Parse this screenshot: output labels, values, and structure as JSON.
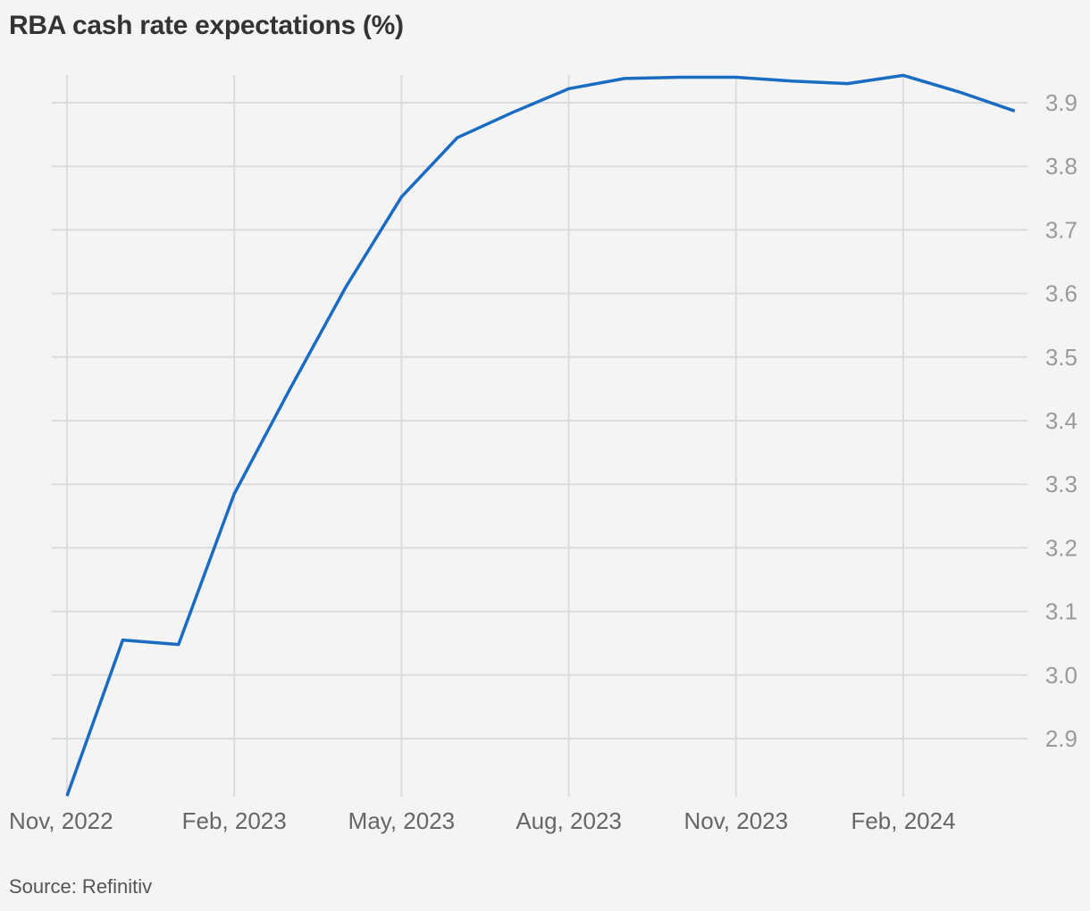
{
  "chart_data": {
    "type": "line",
    "title": "RBA cash rate expectations (%)",
    "source": "Source: Refinitiv",
    "xlabel": "",
    "ylabel": "",
    "ylim": [
      2.82,
      3.96
    ],
    "y_ticks": [
      2.9,
      3.0,
      3.1,
      3.2,
      3.3,
      3.4,
      3.5,
      3.6,
      3.7,
      3.8,
      3.9
    ],
    "y_tick_labels": [
      "2.9",
      "3.0",
      "3.1",
      "3.2",
      "3.3",
      "3.4",
      "3.5",
      "3.6",
      "3.7",
      "3.8",
      "3.9"
    ],
    "x_range": [
      "2022-11",
      "2024-04"
    ],
    "x_ticks": [
      "2022-11",
      "2023-02",
      "2023-05",
      "2023-08",
      "2023-11",
      "2024-02"
    ],
    "x_tick_labels": [
      "Nov, 2022",
      "Feb, 2023",
      "May, 2023",
      "Aug, 2023",
      "Nov, 2023",
      "Feb, 2024"
    ],
    "y_axis_side": "right",
    "grid": true,
    "legend": "none",
    "line_color": "#1a6cc2",
    "grid_color": "#dcdcdc",
    "series": [
      {
        "x": [
          "2022-11",
          "2022-12",
          "2023-01",
          "2023-02",
          "2023-03",
          "2023-04",
          "2023-05",
          "2023-06",
          "2023-07",
          "2023-08",
          "2023-09",
          "2023-10",
          "2023-11",
          "2023-12",
          "2024-01",
          "2024-02",
          "2024-03",
          "2024-04"
        ],
        "values": [
          2.81,
          3.055,
          3.048,
          3.285,
          3.45,
          3.61,
          3.752,
          3.845,
          3.885,
          3.922,
          3.938,
          3.94,
          3.94,
          3.934,
          3.93,
          3.943,
          3.917,
          3.887
        ]
      }
    ]
  }
}
